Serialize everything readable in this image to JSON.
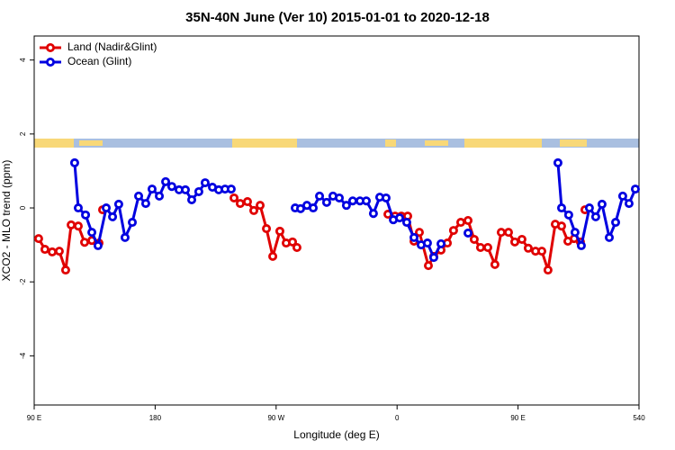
{
  "chart_data": {
    "type": "line",
    "title": "35N-40N June (Ver 10)   2015-01-01 to 2020-12-18",
    "xlabel": "Longitude (deg E)",
    "ylabel": "XCO2 - MLO trend (ppm)",
    "xlim": [
      90,
      540
    ],
    "ylim": [
      -5.33,
      4.65
    ],
    "xticks": [
      {
        "value": 90,
        "label": "90 E"
      },
      180,
      {
        "value": 270,
        "label": "90 W"
      },
      {
        "value": 360,
        "label": "0"
      },
      {
        "value": 450,
        "label": "90 E"
      },
      540
    ],
    "yticks": [
      -4,
      -2,
      0,
      2,
      4
    ],
    "legend": "top-left",
    "series": [
      {
        "name": "Land (Nadir&Glint)",
        "color": "#e00000",
        "x": [
          93.3,
          98.0,
          103.4,
          108.7,
          113.4,
          117.5,
          122.8,
          127.5,
          132.9,
          138.2,
          null,
          140.9,
          null,
          238.7,
          243.3,
          248.7,
          253.4,
          258.1,
          262.8,
          267.5,
          272.8,
          277.5,
          282.2,
          285.5,
          null,
          353.2,
          358.5,
          363.2,
          367.9,
          372.6,
          376.6,
          383.3,
          387.3,
          392.7,
          397.4,
          402.0,
          407.4,
          412.8,
          417.4,
          422.1,
          427.5,
          432.8,
          437.5,
          442.9,
          447.6,
          452.9,
          457.6,
          463.0,
          467.7,
          472.3,
          477.7,
          482.4,
          487.1,
          491.8,
          496.4,
          null,
          499.8
        ],
        "values": [
          -0.83,
          -1.12,
          -1.19,
          -1.17,
          -1.68,
          -0.46,
          -0.49,
          -0.93,
          -0.88,
          -0.95,
          null,
          -0.05,
          null,
          0.27,
          0.12,
          0.17,
          -0.07,
          0.07,
          -0.56,
          -1.31,
          -0.63,
          -0.95,
          -0.92,
          -1.07,
          null,
          -0.17,
          -0.22,
          -0.22,
          -0.22,
          -0.9,
          -0.66,
          -1.56,
          -1.31,
          -1.14,
          -0.95,
          -0.61,
          -0.39,
          -0.34,
          -0.85,
          -1.07,
          -1.07,
          -1.53,
          -0.66,
          -0.66,
          -0.92,
          -0.85,
          -1.09,
          -1.17,
          -1.17,
          -1.68,
          -0.44,
          -0.49,
          -0.9,
          -0.83,
          -0.92,
          null,
          -0.05
        ]
      },
      {
        "name": "Ocean (Glint)",
        "color": "#0000e0",
        "x": [
          120.1,
          122.8,
          128.2,
          132.9,
          137.5,
          143.6,
          148.3,
          152.9,
          157.6,
          163.0,
          167.7,
          173.0,
          177.7,
          183.1,
          187.8,
          192.4,
          197.8,
          202.5,
          207.2,
          212.5,
          217.2,
          222.6,
          227.3,
          232.0,
          236.6,
          null,
          284.2,
          288.2,
          292.9,
          297.6,
          302.3,
          307.6,
          312.3,
          317.0,
          322.3,
          327.0,
          332.4,
          337.1,
          342.4,
          347.1,
          351.8,
          357.2,
          361.9,
          367.2,
          372.6,
          377.9,
          382.6,
          387.3,
          392.7,
          null,
          412.8,
          null,
          479.7,
          482.4,
          487.7,
          492.4,
          497.1,
          503.1,
          507.8,
          512.5,
          517.9,
          522.6,
          527.9,
          532.6,
          537.3
        ],
        "values": [
          1.22,
          0,
          -0.19,
          -0.66,
          -1.02,
          0,
          -0.24,
          0.1,
          -0.8,
          -0.39,
          0.32,
          0.12,
          0.51,
          0.32,
          0.71,
          0.58,
          0.49,
          0.49,
          0.22,
          0.44,
          0.68,
          0.56,
          0.49,
          0.51,
          0.51,
          null,
          0,
          -0.02,
          0.07,
          0,
          0.32,
          0.15,
          0.32,
          0.27,
          0.07,
          0.19,
          0.19,
          0.19,
          -0.15,
          0.29,
          0.27,
          -0.32,
          -0.27,
          -0.39,
          -0.8,
          -1.0,
          -0.95,
          -1.34,
          -0.97,
          null,
          -0.68,
          null,
          1.22,
          0,
          -0.19,
          -0.66,
          -1.02,
          0,
          -0.24,
          0.1,
          -0.8,
          -0.39,
          0.32,
          0.12,
          0.51
        ]
      }
    ]
  }
}
